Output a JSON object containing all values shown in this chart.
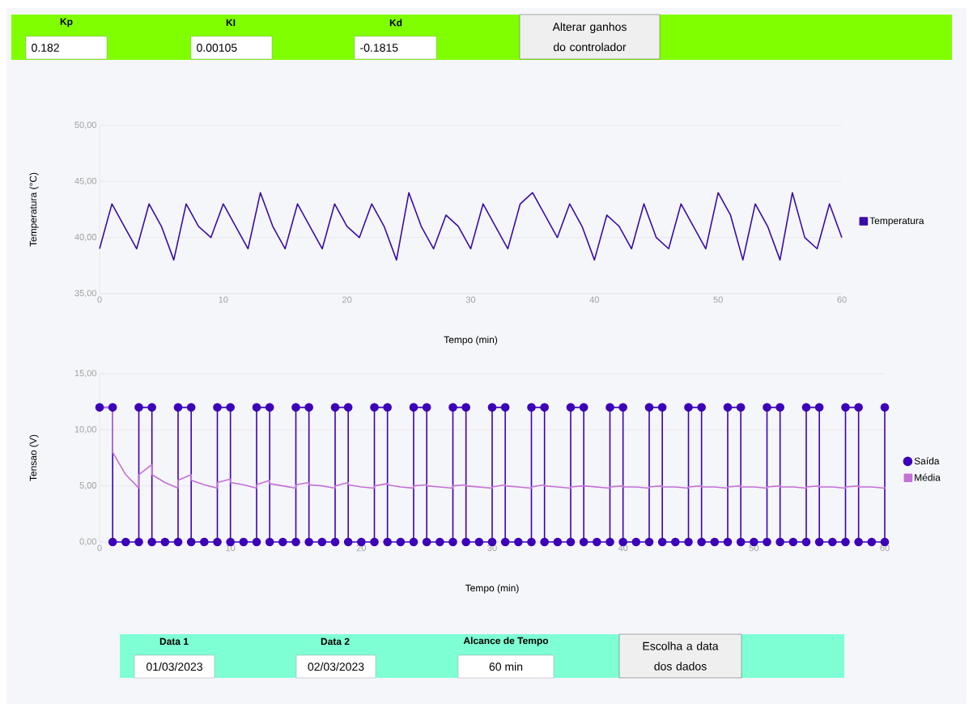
{
  "chart_data": [
    {
      "type": "other",
      "color": "#80ff00",
      "annotations": [
        "Kp",
        "0.182",
        "KI",
        "0.00105",
        "Kd",
        "-0.1815",
        "Alterar ganhos do controlador"
      ]
    },
    {
      "type": "line",
      "xlabel": "Tempo (min)",
      "ylabel": "Temperatura (°C)",
      "grid": "y",
      "legend": "right",
      "x": [
        0,
        1,
        2,
        3,
        4,
        5,
        6,
        7,
        8,
        9,
        10,
        11,
        12,
        13,
        14,
        15,
        16,
        17,
        18,
        19,
        20,
        21,
        22,
        23,
        24,
        25,
        26,
        27,
        28,
        29,
        30,
        31,
        32,
        33,
        34,
        35,
        36,
        37,
        38,
        39,
        40,
        41,
        42,
        43,
        44,
        45,
        46,
        47,
        48,
        49,
        50,
        51,
        52,
        53,
        54,
        55,
        56,
        57,
        58,
        59,
        60
      ],
      "xlim": [
        0,
        60
      ],
      "xticks": [
        0,
        10,
        20,
        30,
        40,
        50,
        60
      ],
      "ylim": [
        35,
        50
      ],
      "yticks": [
        {
          "value": 35,
          "label": "35,00"
        },
        {
          "value": 40,
          "label": "40,00"
        },
        {
          "value": 45,
          "label": "45,00"
        },
        {
          "value": 50,
          "label": "50,00"
        }
      ],
      "series": [
        {
          "name": "Temperatura",
          "color": "#3a0ca8",
          "values": [
            39,
            43,
            41,
            39,
            43,
            41,
            38,
            43,
            41,
            40,
            43,
            41,
            39,
            44,
            41,
            39,
            43,
            41,
            39,
            43,
            41,
            40,
            43,
            41,
            38,
            44,
            41,
            39,
            42,
            41,
            39,
            43,
            41,
            39,
            43,
            44,
            42,
            40,
            43,
            41,
            38,
            42,
            41,
            39,
            43,
            40,
            39,
            43,
            41,
            39,
            44,
            42,
            38,
            43,
            41,
            38,
            44,
            40,
            39,
            43,
            40
          ]
        }
      ]
    },
    {
      "type": "line",
      "xlabel": "Tempo (min)",
      "ylabel": "Tensao (V)",
      "grid": "y",
      "legend": "right",
      "xlim": [
        0,
        60
      ],
      "xticks": [
        0,
        10,
        20,
        30,
        40,
        50,
        60
      ],
      "ylim": [
        0,
        15
      ],
      "yticks": [
        {
          "value": 0,
          "label": "0,00"
        },
        {
          "value": 5,
          "label": "5,00"
        },
        {
          "value": 10,
          "label": "10,00"
        },
        {
          "value": 15,
          "label": "15,00"
        }
      ],
      "series": [
        {
          "name": "Saída",
          "color": "#3c00b8",
          "marker": "circle",
          "x": [
            0,
            1,
            1,
            2,
            3,
            3,
            4,
            4,
            5,
            6,
            6,
            7,
            7,
            8,
            9,
            9,
            10,
            10,
            11,
            12,
            12,
            13,
            13,
            14,
            15,
            15,
            16,
            16,
            17,
            18,
            18,
            19,
            19,
            20,
            21,
            21,
            22,
            22,
            23,
            24,
            24,
            25,
            25,
            26,
            27,
            27,
            28,
            28,
            29,
            30,
            30,
            31,
            31,
            32,
            33,
            33,
            34,
            34,
            35,
            36,
            36,
            37,
            37,
            38,
            39,
            39,
            40,
            40,
            41,
            42,
            42,
            43,
            43,
            44,
            45,
            45,
            46,
            46,
            47,
            48,
            48,
            49,
            49,
            50,
            51,
            51,
            52,
            52,
            53,
            54,
            54,
            55,
            55,
            56,
            57,
            57,
            58,
            58,
            59,
            60,
            60
          ],
          "values": [
            12,
            12,
            0,
            0,
            0,
            12,
            12,
            0,
            0,
            0,
            12,
            12,
            0,
            0,
            0,
            12,
            12,
            0,
            0,
            0,
            12,
            12,
            0,
            0,
            0,
            12,
            12,
            0,
            0,
            0,
            12,
            12,
            0,
            0,
            0,
            12,
            12,
            0,
            0,
            0,
            12,
            12,
            0,
            0,
            0,
            12,
            12,
            0,
            0,
            0,
            12,
            12,
            0,
            0,
            0,
            12,
            12,
            0,
            0,
            0,
            12,
            12,
            0,
            0,
            0,
            12,
            12,
            0,
            0,
            0,
            12,
            12,
            0,
            0,
            0,
            12,
            12,
            0,
            0,
            0,
            12,
            12,
            0,
            0,
            0,
            12,
            12,
            0,
            0,
            0,
            12,
            12,
            0,
            0,
            0,
            12,
            12,
            0,
            0,
            0,
            12
          ]
        },
        {
          "name": "Média",
          "color": "#c470d6",
          "x": [
            0,
            1,
            1,
            2,
            3,
            3,
            4,
            4,
            5,
            6,
            6,
            7,
            7,
            8,
            9,
            9,
            10,
            10,
            11,
            12,
            12,
            13,
            13,
            14,
            15,
            15,
            16,
            16,
            17,
            18,
            18,
            19,
            19,
            20,
            21,
            21,
            22,
            22,
            23,
            24,
            24,
            25,
            25,
            26,
            27,
            27,
            28,
            28,
            29,
            30,
            30,
            31,
            31,
            32,
            33,
            33,
            34,
            34,
            35,
            36,
            36,
            37,
            37,
            38,
            39,
            39,
            40,
            40,
            41,
            42,
            42,
            43,
            43,
            44,
            45,
            45,
            46,
            46,
            47,
            48,
            48,
            49,
            49,
            50,
            51,
            51,
            52,
            52,
            53,
            54,
            54,
            55,
            55,
            56,
            57,
            57,
            58,
            58,
            59,
            60,
            60
          ],
          "values": [
            12,
            12,
            8,
            6,
            4.8,
            6,
            6.9,
            6,
            5.3,
            4.8,
            5.5,
            6,
            5.5,
            5.1,
            4.8,
            5.3,
            5.6,
            5.3,
            5.1,
            4.8,
            5.1,
            5.5,
            5.2,
            5,
            4.8,
            5.1,
            5.3,
            5.1,
            5,
            4.8,
            5,
            5.3,
            5.1,
            4.9,
            4.8,
            5,
            5.2,
            5.1,
            4.9,
            4.8,
            5,
            5.1,
            5,
            4.9,
            4.8,
            5,
            5.1,
            5,
            4.9,
            4.8,
            4.9,
            5.1,
            5,
            4.9,
            4.8,
            4.9,
            5.1,
            5,
            4.9,
            4.8,
            4.9,
            5,
            5,
            4.9,
            4.8,
            4.9,
            5,
            4.9,
            4.9,
            4.8,
            4.9,
            5,
            4.9,
            4.9,
            4.8,
            4.9,
            5,
            4.9,
            4.9,
            4.8,
            4.9,
            5,
            4.9,
            4.9,
            4.8,
            4.9,
            5,
            4.9,
            4.9,
            4.8,
            4.9,
            5,
            4.9,
            4.9,
            4.8,
            4.9,
            5,
            4.9,
            4.9,
            4.8,
            4.9
          ]
        }
      ]
    },
    {
      "type": "other",
      "color": "#7fffd4",
      "annotations": [
        "Data 1",
        "01/03/2023",
        "Data 2",
        "02/03/2023",
        "Alcance de Tempo",
        "60 min",
        "Escolha a data dos dados"
      ]
    }
  ]
}
